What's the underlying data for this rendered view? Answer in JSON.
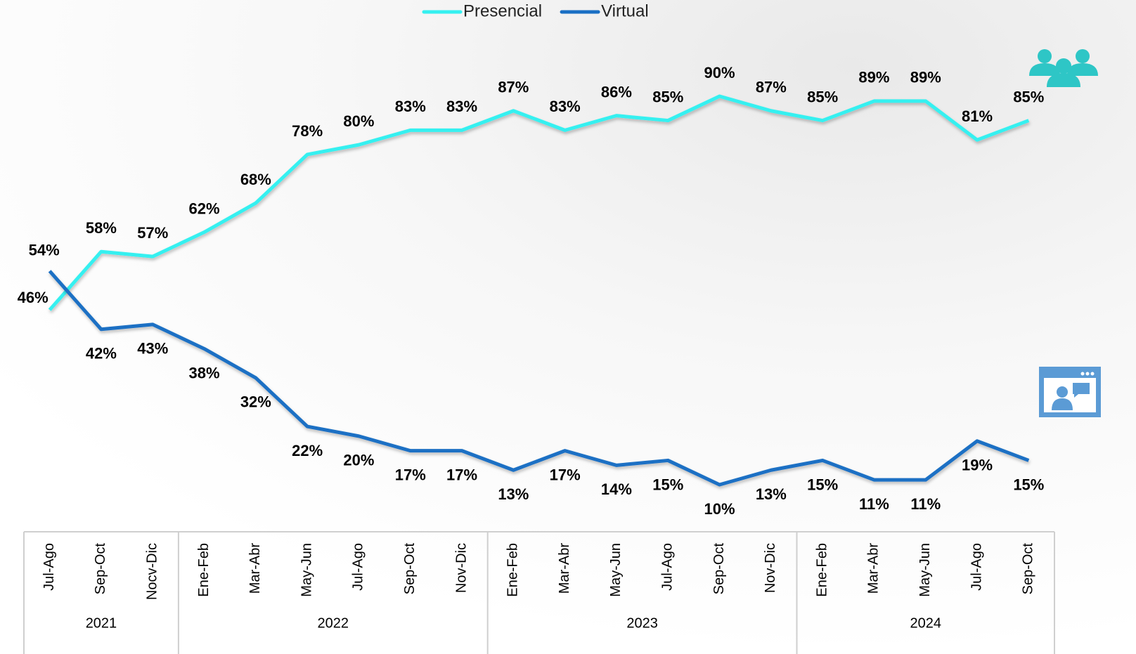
{
  "chart_data": {
    "type": "line",
    "groups": [
      {
        "label": "2021",
        "categories": [
          "Jul-Ago",
          "Sep-Oct",
          "Nocv-Dic"
        ]
      },
      {
        "label": "2022",
        "categories": [
          "Ene-Feb",
          "Mar-Abr",
          "May-Jun",
          "Jul-Ago",
          "Sep-Oct",
          "Nov-Dic"
        ]
      },
      {
        "label": "2023",
        "categories": [
          "Ene-Feb",
          "Mar-Abr",
          "May-Jun",
          "Jul-Ago",
          "Sep-Oct",
          "Nov-Dic"
        ]
      },
      {
        "label": "2024",
        "categories": [
          "Ene-Feb",
          "Mar-Abr",
          "May-Jun",
          "Jul-Ago",
          "Sep-Oct"
        ]
      }
    ],
    "series": [
      {
        "name": "Presencial",
        "color": "#35f0f0",
        "values": [
          46,
          58,
          57,
          62,
          68,
          78,
          80,
          83,
          83,
          87,
          83,
          86,
          85,
          90,
          87,
          85,
          89,
          89,
          81,
          85
        ],
        "value_labels": [
          "46%",
          "58%",
          "57%",
          "62%",
          "68%",
          "78%",
          "80%",
          "83%",
          "83%",
          "87%",
          "83%",
          "86%",
          "85%",
          "90%",
          "87%",
          "85%",
          "89%",
          "89%",
          "81%",
          "85%"
        ]
      },
      {
        "name": "Virtual",
        "color": "#1a6fc4",
        "values": [
          54,
          42,
          43,
          38,
          32,
          22,
          20,
          17,
          17,
          13,
          17,
          14,
          15,
          10,
          13,
          15,
          11,
          11,
          19,
          15
        ],
        "value_labels": [
          "54%",
          "42%",
          "43%",
          "38%",
          "32%",
          "22%",
          "20%",
          "17%",
          "17%",
          "13%",
          "17%",
          "14%",
          "15%",
          "10%",
          "13%",
          "15%",
          "11%",
          "11%",
          "19%",
          "15%"
        ]
      }
    ]
  }
}
